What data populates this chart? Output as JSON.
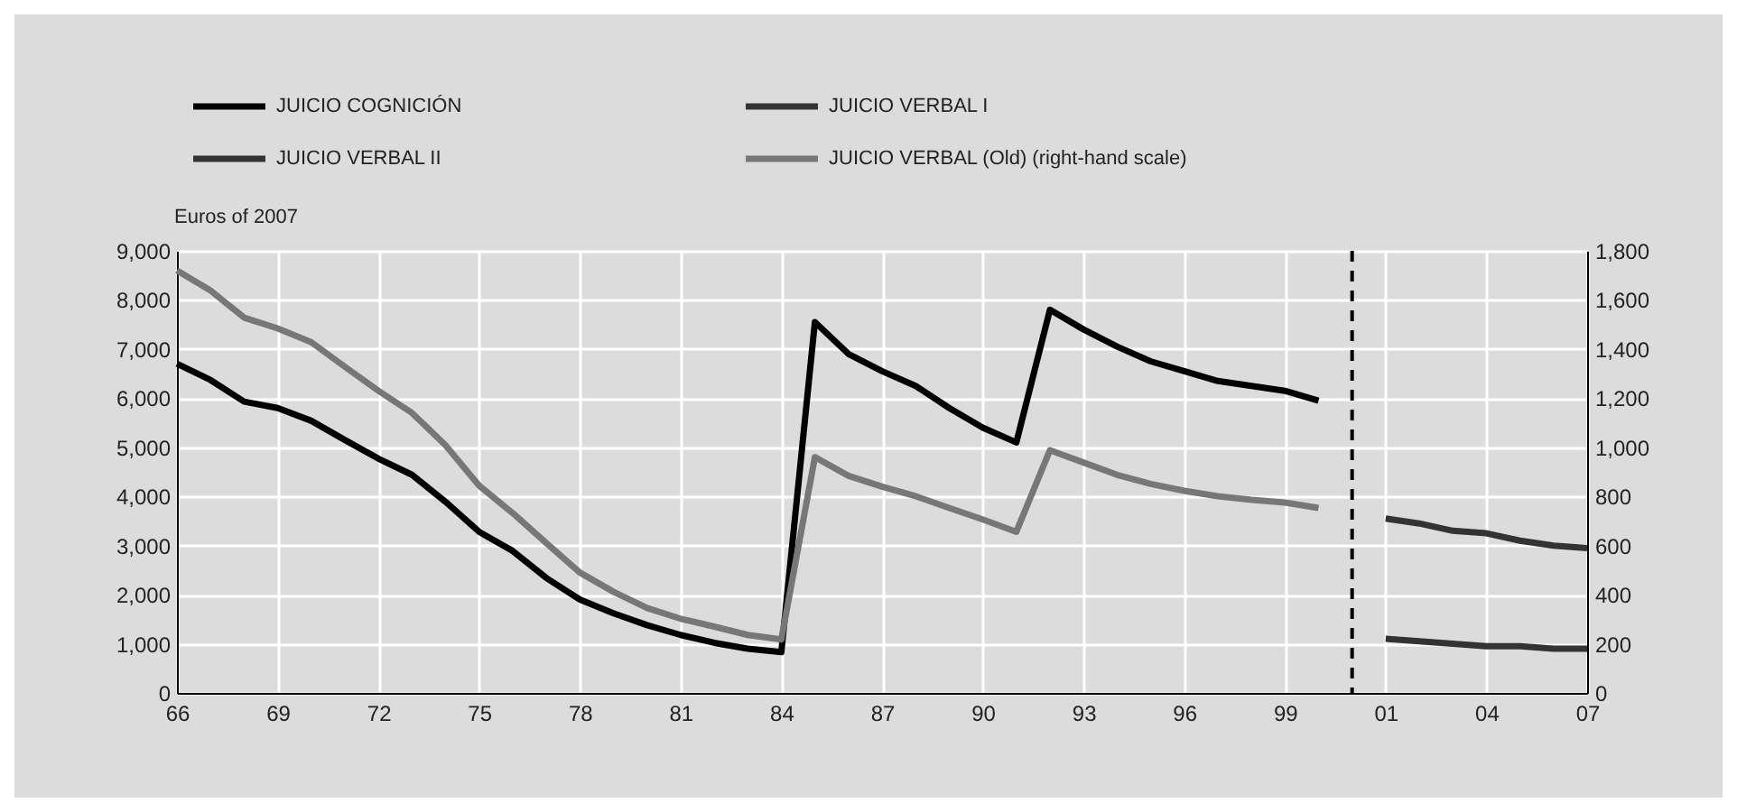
{
  "chart_data": {
    "type": "line",
    "ylabel": "Euros of 2007",
    "categories": [
      "66",
      null,
      null,
      "69",
      null,
      null,
      "72",
      null,
      null,
      "75",
      null,
      null,
      "78",
      null,
      null,
      "81",
      null,
      null,
      "84",
      null,
      null,
      "87",
      null,
      null,
      "90",
      null,
      null,
      "93",
      null,
      null,
      "96",
      null,
      null,
      "99",
      null,
      null,
      "01",
      null,
      null,
      "04",
      null,
      null,
      "07"
    ],
    "series": [
      {
        "name": "JUICIO COGNICIÓN",
        "color": "#000000",
        "values": [
          6700,
          6370,
          5930,
          5800,
          5540,
          5150,
          4770,
          4440,
          3890,
          3280,
          2890,
          2340,
          1900,
          1620,
          1380,
          1180,
          1020,
          900,
          830,
          7550,
          6900,
          6550,
          6250,
          5800,
          5400,
          5100,
          7800,
          7400,
          7050,
          6750,
          6550,
          6350,
          6250,
          6150,
          5950,
          null,
          null,
          null,
          null,
          null,
          null,
          null,
          null
        ]
      },
      {
        "name": "JUICIO VERBAL I",
        "color": "#333333",
        "values": [
          null,
          null,
          null,
          null,
          null,
          null,
          null,
          null,
          null,
          null,
          null,
          null,
          null,
          null,
          null,
          null,
          null,
          null,
          null,
          null,
          null,
          null,
          null,
          null,
          null,
          null,
          null,
          null,
          null,
          null,
          null,
          null,
          null,
          null,
          null,
          null,
          3550,
          3450,
          3300,
          3250,
          3100,
          3000,
          2950
        ]
      },
      {
        "name": "JUICIO VERBAL II",
        "color": "#333333",
        "values": [
          null,
          null,
          null,
          null,
          null,
          null,
          null,
          null,
          null,
          null,
          null,
          null,
          null,
          null,
          null,
          null,
          null,
          null,
          null,
          null,
          null,
          null,
          null,
          null,
          null,
          null,
          null,
          null,
          null,
          null,
          null,
          null,
          null,
          null,
          null,
          null,
          1100,
          1050,
          1000,
          950,
          950,
          900,
          900
        ]
      },
      {
        "name": "JUICIO VERBAL (Old) (right-hand scale)",
        "color": "#777777",
        "axis": "y2",
        "values": [
          1720,
          1638,
          1528,
          1484,
          1428,
          1328,
          1230,
          1140,
          1008,
          844,
          732,
          610,
          490,
          412,
          346,
          302,
          270,
          236,
          218,
          960,
          884,
          840,
          801,
          753,
          706,
          656,
          988,
          938,
          888,
          851,
          823,
          801,
          786,
          775,
          753,
          null,
          null,
          null,
          null,
          null,
          null,
          null,
          null
        ]
      }
    ],
    "ylim": [
      0,
      9000
    ],
    "yticks": [
      0,
      {
        "value": 1000,
        "label": "1,000"
      },
      {
        "value": 2000,
        "label": "2,000"
      },
      {
        "value": 3000,
        "label": "3,000"
      },
      {
        "value": 4000,
        "label": "4,000"
      },
      {
        "value": 5000,
        "label": "5,000"
      },
      {
        "value": 6000,
        "label": "6,000"
      },
      {
        "value": 7000,
        "label": "7,000"
      },
      {
        "value": 8000,
        "label": "8,000"
      },
      {
        "value": 9000,
        "label": "9,000"
      }
    ],
    "y2lim": [
      0,
      1800
    ],
    "y2ticks": [
      0,
      200,
      400,
      600,
      800,
      {
        "value": 1000,
        "label": "1,000"
      },
      {
        "value": 1200,
        "label": "1,200"
      },
      {
        "value": 1400,
        "label": "1,400"
      },
      {
        "value": 1600,
        "label": "1,600"
      },
      {
        "value": 1800,
        "label": "1,800"
      }
    ],
    "grid": true,
    "legend": "top left",
    "line_style": "solid"
  }
}
